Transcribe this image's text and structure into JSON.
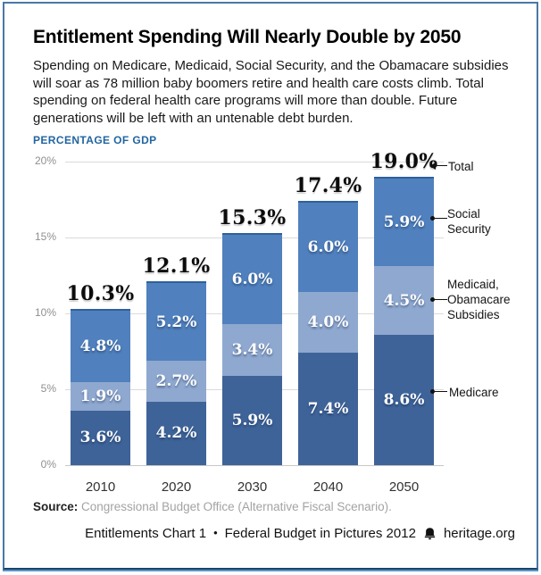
{
  "header": {
    "title": "Entitlement Spending Will Nearly Double by 2050",
    "subtitle": "Spending on Medicare, Medicaid, Social Security, and the Obamacare subsidies will soar as 78 million baby boomers retire and health care costs climb. Total spending on federal health care programs will more than double. Future generations will be left with an untenable debt burden.",
    "kicker": "PERCENTAGE OF GDP"
  },
  "chart_data": {
    "type": "bar",
    "stacked": true,
    "title": "Entitlement Spending Will Nearly Double by 2050",
    "ylabel": "PERCENTAGE OF GDP",
    "xlabel": "",
    "categories": [
      "2010",
      "2020",
      "2030",
      "2040",
      "2050"
    ],
    "series": [
      {
        "name": "Medicare",
        "values": [
          3.6,
          4.2,
          5.9,
          7.4,
          8.6
        ],
        "color": "#3e6398"
      },
      {
        "name": "Medicaid, Obamacare Subsidies",
        "values": [
          1.9,
          2.7,
          3.4,
          4.0,
          4.5
        ],
        "color": "#8fa8cf"
      },
      {
        "name": "Social Security",
        "values": [
          4.8,
          5.2,
          6.0,
          6.0,
          5.9
        ],
        "color": "#5080bd"
      }
    ],
    "totals": [
      10.3,
      12.1,
      15.3,
      17.4,
      19.0
    ],
    "total_labels": [
      "10.3%",
      "12.1%",
      "15.3%",
      "17.4%",
      "19.0%"
    ],
    "ylim": [
      0,
      20
    ],
    "yticks": [
      0,
      5,
      10,
      15,
      20
    ],
    "ytick_labels": [
      "0%",
      "5%",
      "10%",
      "15%",
      "20%"
    ],
    "grid": true,
    "legend_position": "right-annotations"
  },
  "annotations": {
    "total": {
      "label": "Total"
    },
    "social": {
      "line1": "Social",
      "line2": "Security"
    },
    "medicaid": {
      "line1": "Medicaid,",
      "line2": "Obamacare",
      "line3": "Subsidies"
    },
    "medicare": {
      "label": "Medicare"
    }
  },
  "footer": {
    "source_label": "Source:",
    "source_text": " Congressional Budget Office (Alternative Fiscal Scenario).",
    "attribution_left": "Entitlements Chart 1",
    "separator": "•",
    "attribution_right": "Federal Budget in Pictures 2012",
    "site": "heritage.org",
    "icon": "liberty-bell-icon"
  },
  "colors": {
    "medicare": "#3e6398",
    "medicaid_obamacare": "#8fa8cf",
    "social_security": "#5080bd",
    "bar_cap": "#2f609a",
    "frame_border": "#4a78a6",
    "frame_border_bottom": "#16456f",
    "frame_border_shadow": "#5e93c3",
    "kicker_blue": "#2265a0"
  }
}
